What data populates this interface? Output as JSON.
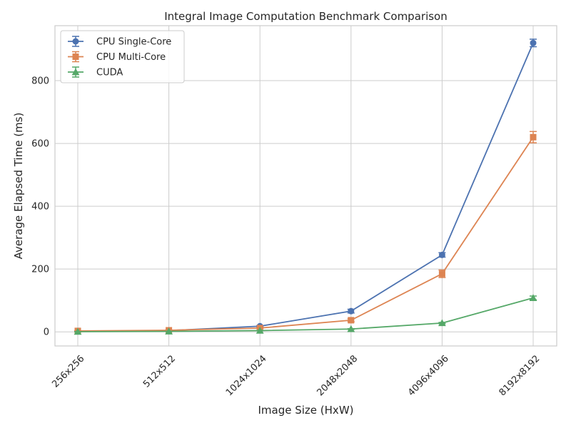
{
  "chart_data": {
    "type": "line",
    "title": "Integral Image Computation Benchmark Comparison",
    "xlabel": "Image Size (HxW)",
    "ylabel": "Average Elapsed Time (ms)",
    "categories": [
      "256x256",
      "512x512",
      "1024x1024",
      "2048x2048",
      "4096x4096",
      "8192x8192"
    ],
    "ylim": [
      -45,
      975
    ],
    "yticks": [
      0,
      200,
      400,
      600,
      800
    ],
    "grid": true,
    "legend_position": "top-left",
    "series": [
      {
        "name": "CPU Single-Core",
        "color": "#4c72b0",
        "marker": "circle",
        "values": [
          1.5,
          4,
          18,
          66,
          245,
          920
        ],
        "errors": [
          0.5,
          1,
          2,
          6,
          7,
          12
        ]
      },
      {
        "name": "CPU Multi-Core",
        "color": "#dd8452",
        "marker": "square",
        "values": [
          3,
          5,
          12,
          37,
          185,
          620
        ],
        "errors": [
          0.5,
          1,
          1.5,
          5,
          12,
          18
        ]
      },
      {
        "name": "CUDA",
        "color": "#55a868",
        "marker": "triangle",
        "values": [
          0.5,
          1.5,
          4,
          9,
          28,
          108
        ],
        "errors": [
          0.2,
          0.4,
          0.6,
          1,
          2,
          6
        ]
      }
    ]
  }
}
